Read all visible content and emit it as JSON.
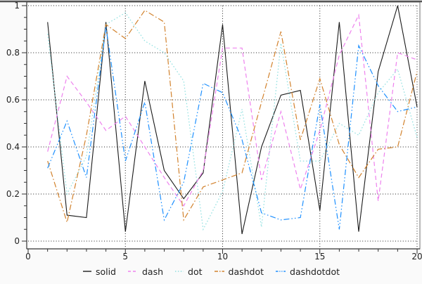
{
  "chart_data": {
    "type": "line",
    "title": "",
    "xlabel": "",
    "ylabel": "",
    "xlim": [
      0,
      20
    ],
    "ylim": [
      0,
      1
    ],
    "x_tick_labels": [
      "0",
      "5",
      "10",
      "15",
      "20"
    ],
    "x_major_ticks": [
      0,
      5,
      10,
      15,
      20
    ],
    "x_minor_step": 1,
    "y_tick_labels": [
      "0",
      "0.2",
      "0.4",
      "0.6",
      "0.8",
      "1"
    ],
    "y_major_ticks": [
      0,
      0.2,
      0.4,
      0.6,
      0.8,
      1
    ],
    "y_minor_step": 0.05,
    "grid": "dotted lines at major ticks",
    "legend_position": "bottom-center",
    "x": [
      1,
      2,
      3,
      4,
      5,
      6,
      7,
      8,
      9,
      10,
      11,
      12,
      13,
      14,
      15,
      16,
      17,
      18,
      19,
      20
    ],
    "series": [
      {
        "name": "solid",
        "color": "#1a1a1a",
        "dash_style": "solid",
        "values": [
          0.93,
          0.11,
          0.1,
          0.93,
          0.04,
          0.68,
          0.3,
          0.18,
          0.29,
          0.92,
          0.03,
          0.4,
          0.62,
          0.64,
          0.13,
          0.93,
          0.04,
          0.72,
          1.0,
          0.57
        ]
      },
      {
        "name": "dash",
        "color": "#ee82ee",
        "dash_style": "dash",
        "values": [
          0.38,
          0.7,
          0.59,
          0.47,
          0.53,
          0.4,
          0.27,
          0.15,
          0.3,
          0.82,
          0.82,
          0.26,
          0.55,
          0.22,
          0.47,
          0.79,
          0.96,
          0.17,
          0.8,
          0.77
        ]
      },
      {
        "name": "dot",
        "color": "#8fe0e0",
        "dash_style": "dot",
        "values": [
          0.88,
          0.2,
          0.36,
          0.92,
          0.97,
          0.85,
          0.8,
          0.68,
          0.05,
          0.21,
          0.56,
          0.06,
          0.84,
          0.34,
          0.34,
          0.5,
          0.45,
          0.63,
          0.73,
          0.44
        ]
      },
      {
        "name": "dashdot",
        "color": "#d2822d",
        "dash_style": "dashdot",
        "values": [
          0.34,
          0.08,
          0.45,
          0.92,
          0.86,
          0.98,
          0.93,
          0.09,
          0.23,
          0.26,
          0.29,
          0.59,
          0.89,
          0.43,
          0.69,
          0.41,
          0.27,
          0.39,
          0.4,
          0.72
        ]
      },
      {
        "name": "dashdotdot",
        "color": "#1e90ff",
        "dash_style": "dashdotdot",
        "values": [
          0.31,
          0.51,
          0.27,
          0.91,
          0.34,
          0.59,
          0.09,
          0.25,
          0.67,
          0.63,
          0.43,
          0.12,
          0.09,
          0.1,
          0.58,
          0.05,
          0.83,
          0.66,
          0.55,
          0.57
        ]
      }
    ]
  },
  "colors": {
    "background": "#fafafa",
    "plot_background": "#ffffff",
    "grid": "#222222",
    "axis": "#333333",
    "frame": "#555555",
    "tick_label": "#222222"
  }
}
